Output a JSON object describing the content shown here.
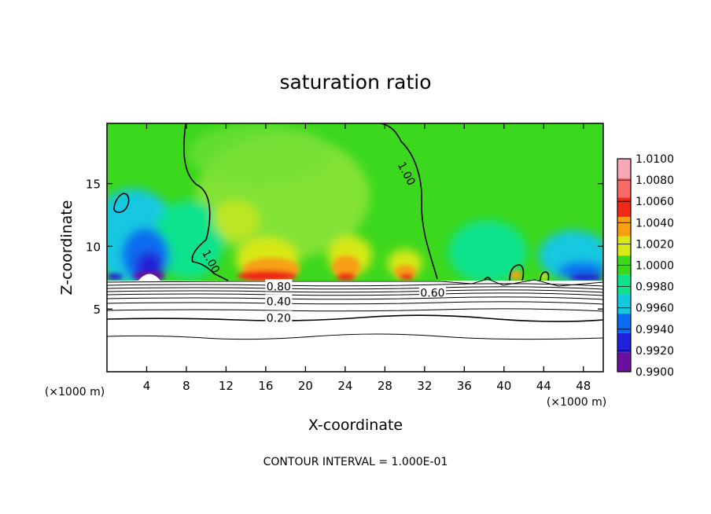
{
  "chart_data": {
    "type": "heatmap",
    "title": "saturation ratio",
    "xlabel": "X-coordinate",
    "ylabel": "Z-coordinate",
    "x_unit_left": "(×1000 m)",
    "x_unit_right": "(×1000 m)",
    "xlim": [
      0,
      50
    ],
    "ylim": [
      0,
      19.8
    ],
    "x_ticks": [
      4,
      8,
      12,
      16,
      20,
      24,
      28,
      32,
      36,
      40,
      44,
      48
    ],
    "y_ticks": [
      5,
      10,
      15
    ],
    "x_tick_labels": [
      "4",
      "8",
      "12",
      "16",
      "20",
      "24",
      "28",
      "32",
      "36",
      "40",
      "44",
      "48"
    ],
    "y_tick_labels": [
      "5",
      "10",
      "15"
    ],
    "colorbar": {
      "levels": [
        0.99,
        0.992,
        0.994,
        0.996,
        0.998,
        1.0,
        1.002,
        1.004,
        1.006,
        1.008,
        1.01
      ],
      "labels": [
        "0.9900",
        "0.9920",
        "0.9940",
        "0.9960",
        "0.9980",
        "1.0000",
        "1.0020",
        "1.0040",
        "1.0060",
        "1.0080",
        "1.0100"
      ],
      "colors": [
        "#6a0fa0",
        "#2020d8",
        "#0a6cf0",
        "#14c8e0",
        "#10e28c",
        "#3cd81e",
        "#d8e818",
        "#f7a014",
        "#f02818",
        "#f86a6a",
        "#f8a8b4"
      ]
    },
    "contour_labels": [
      {
        "text": "1.00",
        "x": 10.5,
        "y": 8.8,
        "angle": 62
      },
      {
        "text": "1.00",
        "x": 30.2,
        "y": 15.8,
        "angle": 62
      },
      {
        "text": "0.80",
        "x": 17.3,
        "y": 6.8,
        "angle": 0
      },
      {
        "text": "0.60",
        "x": 32.8,
        "y": 6.3,
        "angle": 0
      },
      {
        "text": "0.40",
        "x": 17.3,
        "y": 5.6,
        "angle": 0
      },
      {
        "text": "0.20",
        "x": 17.3,
        "y": 4.3,
        "angle": 0
      }
    ],
    "contour_interval_text": "CONTOUR INTERVAL = 1.000E-01"
  }
}
